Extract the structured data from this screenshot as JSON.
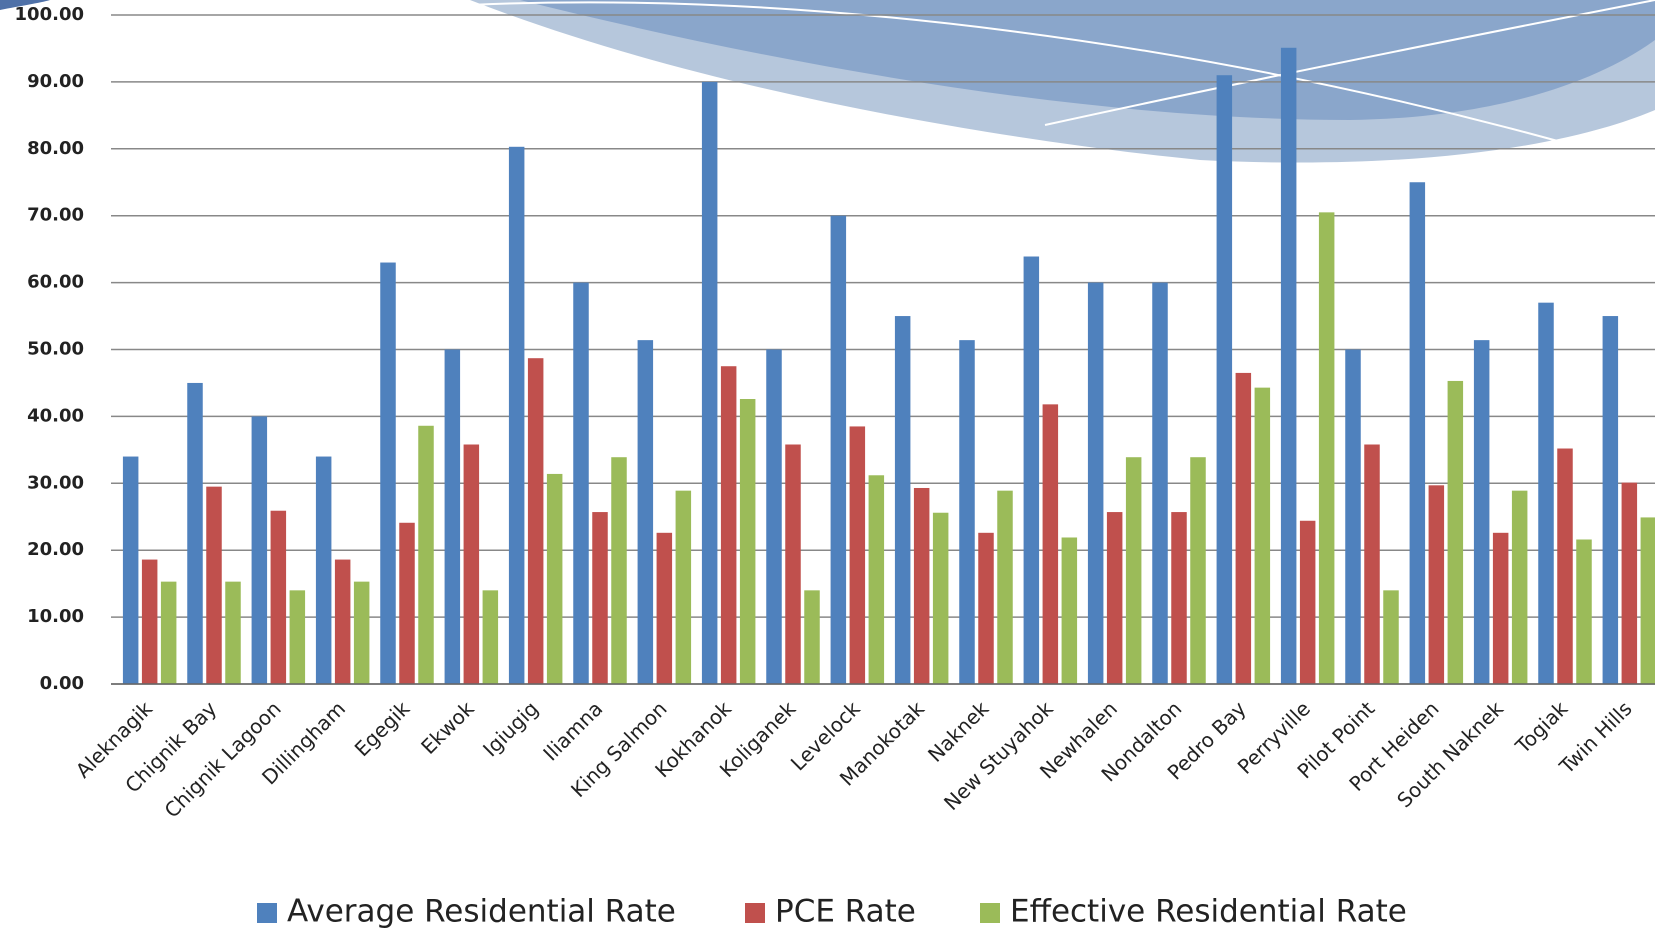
{
  "chart_data": {
    "type": "bar",
    "categories": [
      "Aleknagik",
      "Chignik Bay",
      "Chignik Lagoon",
      "Dillingham",
      "Egegik",
      "Ekwok",
      "Igiugig",
      "Iliamna",
      "King Salmon",
      "Kokhanok",
      "Koliganek",
      "Levelock",
      "Manokotak",
      "Naknek",
      "New Stuyahok",
      "Newhalen",
      "Nondalton",
      "Pedro Bay",
      "Perryville",
      "Pilot Point",
      "Port Heiden",
      "South Naknek",
      "Togiak",
      "Twin Hills"
    ],
    "series": [
      {
        "name": "Average Residential Rate",
        "color": "#4f81bd",
        "values": [
          34,
          45,
          40,
          34,
          63,
          50,
          80.3,
          60,
          51.4,
          90,
          50,
          70,
          55,
          51.4,
          63.9,
          60,
          60,
          91,
          95.1,
          50,
          75,
          51.4,
          57,
          55
        ]
      },
      {
        "name": "PCE Rate",
        "color": "#c0504d",
        "values": [
          18.6,
          29.5,
          25.9,
          18.6,
          24.1,
          35.8,
          48.7,
          25.7,
          22.6,
          47.5,
          35.8,
          38.5,
          29.3,
          22.6,
          41.8,
          25.7,
          25.7,
          46.5,
          24.4,
          35.8,
          29.7,
          22.6,
          35.2,
          30.1
        ]
      },
      {
        "name": "Effective Residential Rate",
        "color": "#9bbb59",
        "values": [
          15.3,
          15.3,
          14,
          15.3,
          38.6,
          14,
          31.4,
          33.9,
          28.9,
          42.6,
          14,
          31.2,
          25.6,
          28.9,
          21.9,
          33.9,
          33.9,
          44.3,
          70.5,
          14,
          45.3,
          28.9,
          21.6,
          24.9
        ]
      }
    ],
    "ylim": [
      0,
      100
    ],
    "yticks": [
      {
        "value": 0,
        "label": "0.00"
      },
      {
        "value": 10,
        "label": "10.00"
      },
      {
        "value": 20,
        "label": "20.00"
      },
      {
        "value": 30,
        "label": "30.00"
      },
      {
        "value": 40,
        "label": "40.00"
      },
      {
        "value": 50,
        "label": "50.00"
      },
      {
        "value": 60,
        "label": "60.00"
      },
      {
        "value": 70,
        "label": "70.00"
      },
      {
        "value": 80,
        "label": "80.00"
      },
      {
        "value": 90,
        "label": "90.00"
      },
      {
        "value": 100,
        "label": "100.00"
      }
    ],
    "grid": true,
    "legend": "bottom"
  }
}
